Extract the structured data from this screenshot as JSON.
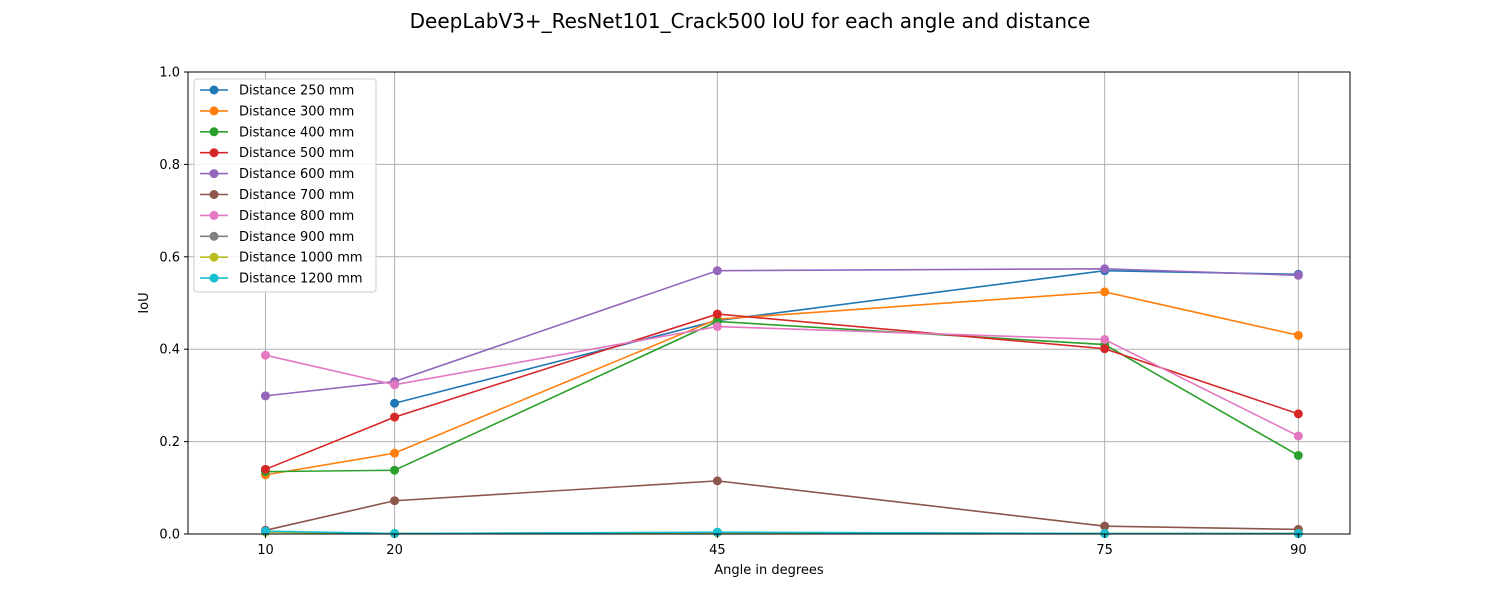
{
  "chart_data": {
    "type": "line",
    "title": "DeepLabV3+_ResNet101_Crack500 IoU for each angle and distance",
    "xlabel": "Angle in degrees",
    "ylabel": "IoU",
    "x": [
      10,
      20,
      45,
      75,
      90
    ],
    "x_tick_labels": [
      "10",
      "20",
      "45",
      "75",
      "90"
    ],
    "xlim": [
      4,
      94
    ],
    "ylim": [
      0.0,
      1.0
    ],
    "y_ticks": [
      0.0,
      0.2,
      0.4,
      0.6,
      0.8,
      1.0
    ],
    "y_tick_labels": [
      "0.0",
      "0.2",
      "0.4",
      "0.6",
      "0.8",
      "1.0"
    ],
    "grid": true,
    "legend_position": "top-left",
    "series": [
      {
        "name": "Distance 250 mm",
        "color": "#1f77b4",
        "values": [
          null,
          0.283,
          0.462,
          0.57,
          0.562
        ]
      },
      {
        "name": "Distance 300 mm",
        "color": "#ff7f0e",
        "values": [
          0.128,
          0.175,
          0.465,
          0.524,
          0.43
        ]
      },
      {
        "name": "Distance 400 mm",
        "color": "#2ca02c",
        "values": [
          0.135,
          0.138,
          0.46,
          0.41,
          0.17
        ]
      },
      {
        "name": "Distance 500 mm",
        "color": "#d62728",
        "values": [
          0.14,
          0.253,
          0.476,
          0.401,
          0.26
        ]
      },
      {
        "name": "Distance 600 mm",
        "color": "#9467bd",
        "values": [
          0.299,
          0.33,
          0.57,
          0.574,
          0.56
        ]
      },
      {
        "name": "Distance 700 mm",
        "color": "#8c564b",
        "values": [
          0.008,
          0.072,
          0.115,
          0.017,
          0.01
        ]
      },
      {
        "name": "Distance 800 mm",
        "color": "#e377c2",
        "values": [
          0.387,
          0.323,
          0.449,
          0.421,
          0.212
        ]
      },
      {
        "name": "Distance 900 mm",
        "color": "#7f7f7f",
        "values": [
          0.005,
          0.001,
          0.003,
          0.001,
          0.001
        ]
      },
      {
        "name": "Distance 1000 mm",
        "color": "#bcbd22",
        "values": [
          0.004,
          0.001,
          0.003,
          0.001,
          0.001
        ]
      },
      {
        "name": "Distance 1200 mm",
        "color": "#17becf",
        "values": [
          0.006,
          0.001,
          0.004,
          0.001,
          0.001
        ]
      }
    ]
  }
}
